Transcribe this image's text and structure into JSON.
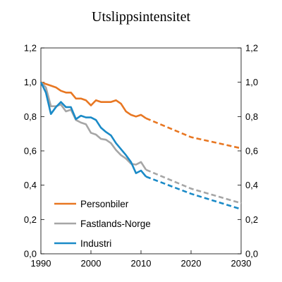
{
  "chart_data": {
    "type": "line",
    "title": "Utslippsintensitet",
    "xlabel": "",
    "ylabel": "",
    "xlim": [
      1990,
      2030
    ],
    "ylim": [
      0,
      1.2
    ],
    "x_ticks": [
      "1990",
      "2000",
      "2010",
      "2020",
      "2030"
    ],
    "x_tick_values": [
      1990,
      2000,
      2010,
      2020,
      2030
    ],
    "y_ticks_left": [
      "0,0",
      "0,2",
      "0,4",
      "0,6",
      "0,8",
      "1,0",
      "1,2"
    ],
    "y_ticks_right": [
      "0,0",
      "0,2",
      "0,4",
      "0,6",
      "0,8",
      "1,0",
      "1,2"
    ],
    "y_tick_values": [
      0,
      0.2,
      0.4,
      0.6,
      0.8,
      1.0,
      1.2
    ],
    "grid": false,
    "legend_position": "bottom-left",
    "series": [
      {
        "name": "Personbiler",
        "color": "#E87722",
        "historical": {
          "x": [
            1990,
            1991,
            1992,
            1993,
            1994,
            1995,
            1996,
            1997,
            1998,
            1999,
            2000,
            2001,
            2002,
            2003,
            2004,
            2005,
            2006,
            2007,
            2008,
            2009,
            2010,
            2011
          ],
          "y": [
            1.0,
            0.99,
            0.98,
            0.97,
            0.95,
            0.94,
            0.94,
            0.905,
            0.905,
            0.895,
            0.865,
            0.895,
            0.885,
            0.885,
            0.885,
            0.895,
            0.875,
            0.83,
            0.81,
            0.8,
            0.81,
            0.79
          ]
        },
        "projection": {
          "x": [
            2011,
            2020,
            2030
          ],
          "y": [
            0.79,
            0.68,
            0.615
          ]
        }
      },
      {
        "name": "Fastlands-Norge",
        "color": "#A6A6A6",
        "historical": {
          "x": [
            1990,
            1991,
            1992,
            1993,
            1994,
            1995,
            1996,
            1997,
            1998,
            1999,
            2000,
            2001,
            2002,
            2003,
            2004,
            2005,
            2006,
            2007,
            2008,
            2009,
            2010,
            2011
          ],
          "y": [
            1.0,
            0.97,
            0.86,
            0.86,
            0.87,
            0.83,
            0.84,
            0.78,
            0.765,
            0.755,
            0.705,
            0.695,
            0.67,
            0.665,
            0.645,
            0.605,
            0.575,
            0.555,
            0.525,
            0.52,
            0.535,
            0.49
          ]
        },
        "projection": {
          "x": [
            2011,
            2020,
            2030
          ],
          "y": [
            0.49,
            0.38,
            0.295
          ]
        }
      },
      {
        "name": "Industri",
        "color": "#1A8AC7",
        "historical": {
          "x": [
            1990,
            1991,
            1992,
            1993,
            1994,
            1995,
            1996,
            1997,
            1998,
            1999,
            2000,
            2001,
            2002,
            2003,
            2004,
            2005,
            2006,
            2007,
            2008,
            2009,
            2010,
            2011
          ],
          "y": [
            1.0,
            0.94,
            0.815,
            0.855,
            0.885,
            0.855,
            0.855,
            0.785,
            0.805,
            0.795,
            0.795,
            0.78,
            0.735,
            0.71,
            0.69,
            0.645,
            0.61,
            0.575,
            0.535,
            0.47,
            0.485,
            0.45
          ]
        },
        "projection": {
          "x": [
            2011,
            2020,
            2030
          ],
          "y": [
            0.45,
            0.35,
            0.26
          ]
        }
      }
    ]
  }
}
